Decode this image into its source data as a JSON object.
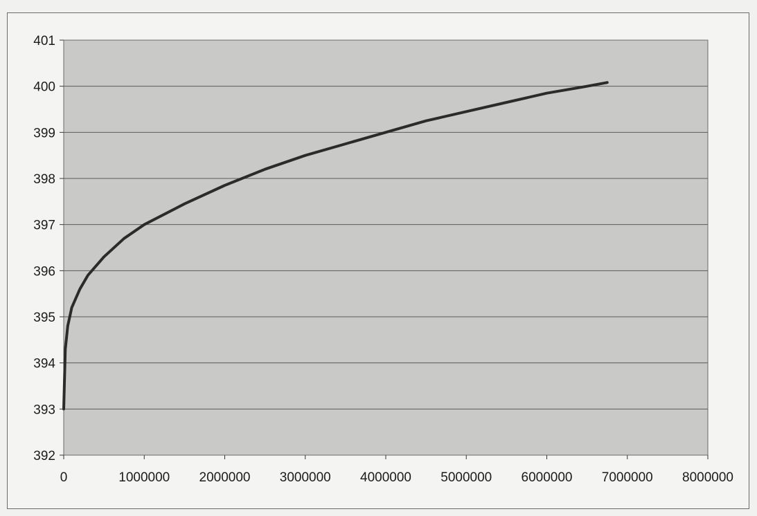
{
  "chart_data": {
    "type": "line",
    "title": "",
    "xlabel": "",
    "ylabel": "",
    "xlim": [
      0,
      8000000
    ],
    "ylim": [
      392,
      401
    ],
    "x_ticks": [
      "0",
      "1000000",
      "2000000",
      "3000000",
      "4000000",
      "5000000",
      "6000000",
      "7000000",
      "8000000"
    ],
    "y_ticks": [
      "392",
      "393",
      "394",
      "395",
      "396",
      "397",
      "398",
      "399",
      "400",
      "401"
    ],
    "grid": "horizontal",
    "legend": "none",
    "plot_background": "#c9c9c7",
    "line_color": "#2b2b2b",
    "gridline_color": "#5a5a5a",
    "series": [
      {
        "x": [
          0,
          20000,
          50000,
          100000,
          200000,
          300000,
          500000,
          750000,
          1000000,
          1500000,
          2000000,
          2500000,
          3000000,
          3500000,
          4000000,
          4500000,
          5000000,
          5500000,
          6000000,
          6500000,
          6750000
        ],
        "y": [
          393.0,
          394.3,
          394.8,
          395.2,
          395.6,
          395.9,
          396.3,
          396.7,
          397.0,
          397.45,
          397.85,
          398.2,
          398.5,
          398.75,
          399.0,
          399.25,
          399.45,
          399.65,
          399.85,
          400.0,
          400.08
        ]
      }
    ]
  }
}
